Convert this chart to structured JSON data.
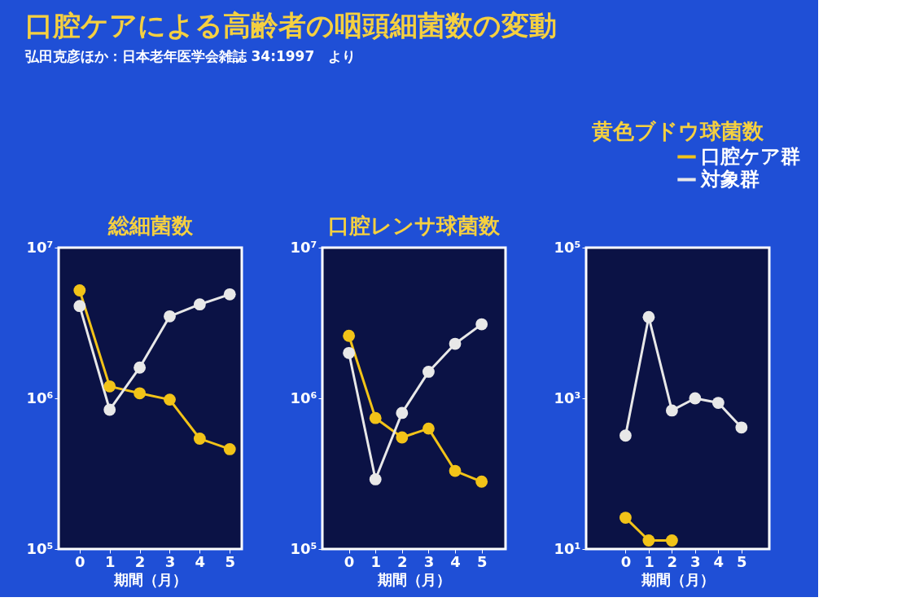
{
  "chart_data": [
    {
      "type": "line",
      "title": "総細菌数",
      "xlabel": "期間（月）",
      "annotations": [
        "口腔ケアによる高齢者の咽頭細菌数の変動",
        "弘田克彦ほか：日本老年医学会雑誌 34:1997　より"
      ],
      "log": "y",
      "marker": "circle",
      "x": [
        0,
        1,
        2,
        3,
        4,
        5
      ],
      "xlim": [
        -0.7,
        5.4
      ],
      "xticks": [
        0,
        1,
        2,
        3,
        4,
        5
      ],
      "ylim": [
        100000,
        10000000
      ],
      "yticks": [
        {
          "value": 100000,
          "label": "10⁵"
        },
        {
          "value": 1000000,
          "label": "10⁶"
        },
        {
          "value": 10000000,
          "label": "10⁷"
        }
      ],
      "legend": false,
      "series": [
        {
          "color": "#f2c318",
          "values": [
            5200000,
            1200000,
            1080000,
            980000,
            540000,
            460000
          ]
        },
        {
          "color": "#e8e8e8",
          "values": [
            4100000,
            840000,
            1600000,
            3500000,
            4200000,
            4900000
          ]
        }
      ]
    },
    {
      "type": "line",
      "title": "口腔レンサ球菌数",
      "xlabel": "期間（月）",
      "log": "y",
      "marker": "circle",
      "x": [
        0,
        1,
        2,
        3,
        4,
        5
      ],
      "xlim": [
        -1,
        5.9
      ],
      "xticks": [
        0,
        1,
        2,
        3,
        4,
        5
      ],
      "ylim": [
        100000,
        10000000
      ],
      "yticks": [
        {
          "value": 100000,
          "label": "10⁵"
        },
        {
          "value": 1000000,
          "label": "10⁶"
        },
        {
          "value": 10000000,
          "label": "10⁷"
        }
      ],
      "legend": false,
      "series": [
        {
          "color": "#f2c318",
          "values": [
            2600000,
            740000,
            550000,
            630000,
            330000,
            280000
          ]
        },
        {
          "color": "#e8e8e8",
          "values": [
            2000000,
            290000,
            800000,
            1500000,
            2300000,
            3100000
          ]
        }
      ]
    },
    {
      "type": "line",
      "title": "黄色ブドウ球菌数",
      "xlabel": "期間（月）",
      "log": "y",
      "marker": "circle",
      "x": [
        0,
        1,
        2,
        3,
        4,
        5
      ],
      "xlim": [
        -1.7,
        6.2
      ],
      "xticks": [
        0,
        1,
        2,
        3,
        4,
        5
      ],
      "ylim": [
        10,
        100000
      ],
      "yticks": [
        {
          "value": 10,
          "label": "10¹"
        },
        {
          "value": 1000,
          "label": "10³"
        },
        {
          "value": 100000,
          "label": "10⁵"
        }
      ],
      "legend": "top right",
      "series": [
        {
          "name": "口腔ケア群",
          "color": "#f2c318",
          "values": [
            26,
            13,
            13,
            null,
            null,
            null
          ]
        },
        {
          "name": "対象群",
          "color": "#e8e8e8",
          "values": [
            320,
            12000,
            690,
            1000,
            870,
            410
          ]
        }
      ]
    }
  ]
}
